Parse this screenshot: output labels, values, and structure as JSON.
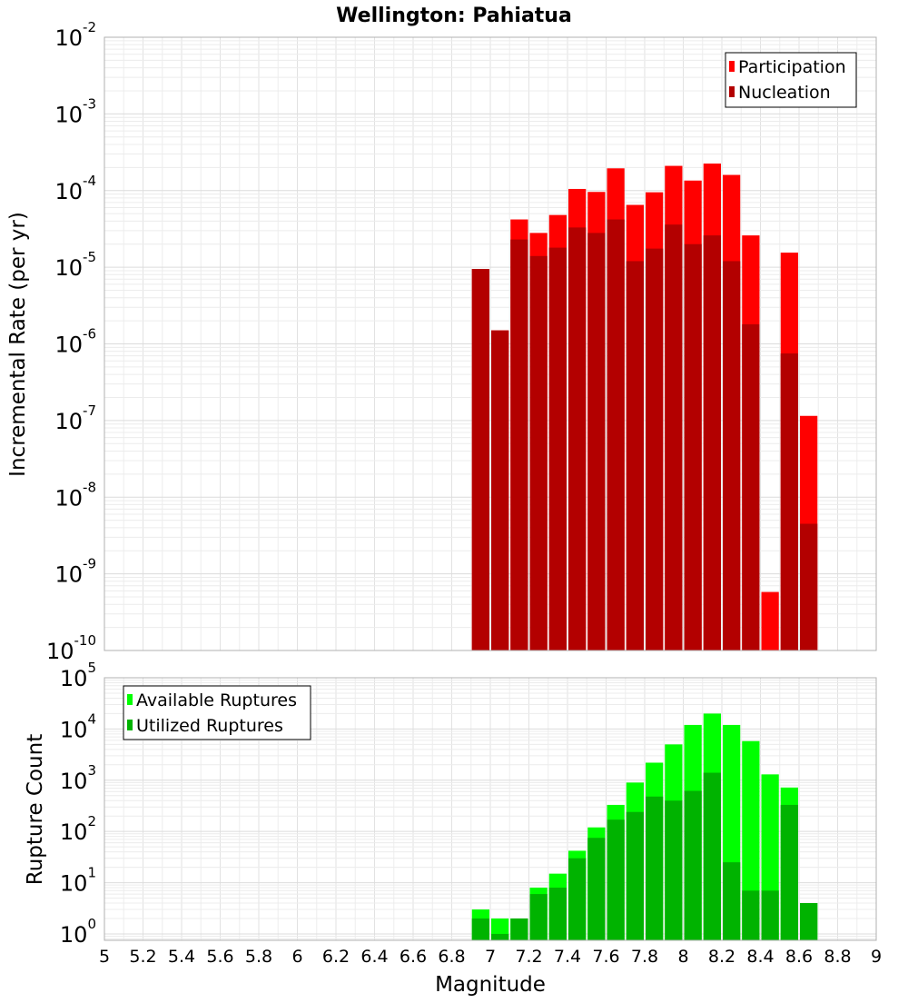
{
  "chart_data": [
    {
      "type": "bar",
      "title": "Wellington: Pahiatua",
      "xlabel": "",
      "ylabel": "Incremental Rate (per yr)",
      "xlim": [
        5,
        9
      ],
      "ylim": [
        1e-10,
        0.01
      ],
      "yscale": "log",
      "grid": true,
      "legend_placement": "top-right",
      "x": [
        6.95,
        7.05,
        7.15,
        7.25,
        7.35,
        7.45,
        7.55,
        7.65,
        7.75,
        7.85,
        7.95,
        8.05,
        8.15,
        8.25,
        8.35,
        8.45,
        8.55,
        8.65
      ],
      "series": [
        {
          "name": "Participation",
          "color": "#ff0000",
          "values": [
            9.5e-06,
            1.5e-06,
            4.2e-05,
            2.8e-05,
            4.8e-05,
            0.000105,
            9.6e-05,
            0.000195,
            6.5e-05,
            9.5e-05,
            0.00021,
            0.000135,
            0.000225,
            0.00016,
            2.6e-05,
            5.8e-10,
            1.55e-05,
            1.15e-07
          ]
        },
        {
          "name": "Nucleation",
          "color": "#b30000",
          "values": [
            9.5e-06,
            1.5e-06,
            2.3e-05,
            1.4e-05,
            1.8e-05,
            3.3e-05,
            2.8e-05,
            4.2e-05,
            1.2e-05,
            1.75e-05,
            3.6e-05,
            2e-05,
            2.6e-05,
            1.2e-05,
            1.8e-06,
            0,
            7.5e-07,
            4.5e-09
          ]
        }
      ]
    },
    {
      "type": "bar",
      "title": "",
      "xlabel": "Magnitude",
      "ylabel": "Rupture Count",
      "xlim": [
        5,
        9
      ],
      "ylim": [
        0.75,
        100000.0
      ],
      "yscale": "log",
      "grid": true,
      "legend_placement": "top-left",
      "x": [
        6.95,
        7.05,
        7.15,
        7.25,
        7.35,
        7.45,
        7.55,
        7.65,
        7.75,
        7.85,
        7.95,
        8.05,
        8.15,
        8.25,
        8.35,
        8.45,
        8.55,
        8.65
      ],
      "x_ticks": [
        "5",
        "5.2",
        "5.4",
        "5.6",
        "5.8",
        "6",
        "6.2",
        "6.4",
        "6.6",
        "6.8",
        "7",
        "7.2",
        "7.4",
        "7.6",
        "7.8",
        "8",
        "8.2",
        "8.4",
        "8.6",
        "8.8",
        "9"
      ],
      "series": [
        {
          "name": "Available Ruptures",
          "color": "#00ff00",
          "values": [
            3,
            2,
            2,
            8,
            15,
            42,
            120,
            330,
            900,
            2200,
            5000,
            12000,
            20000,
            12000,
            5800,
            1300,
            720,
            4
          ]
        },
        {
          "name": "Utilized Ruptures",
          "color": "#00b300",
          "values": [
            2,
            1,
            2,
            6,
            8,
            30,
            75,
            170,
            240,
            480,
            400,
            620,
            1400,
            25,
            7,
            7,
            330,
            4
          ]
        }
      ]
    }
  ]
}
